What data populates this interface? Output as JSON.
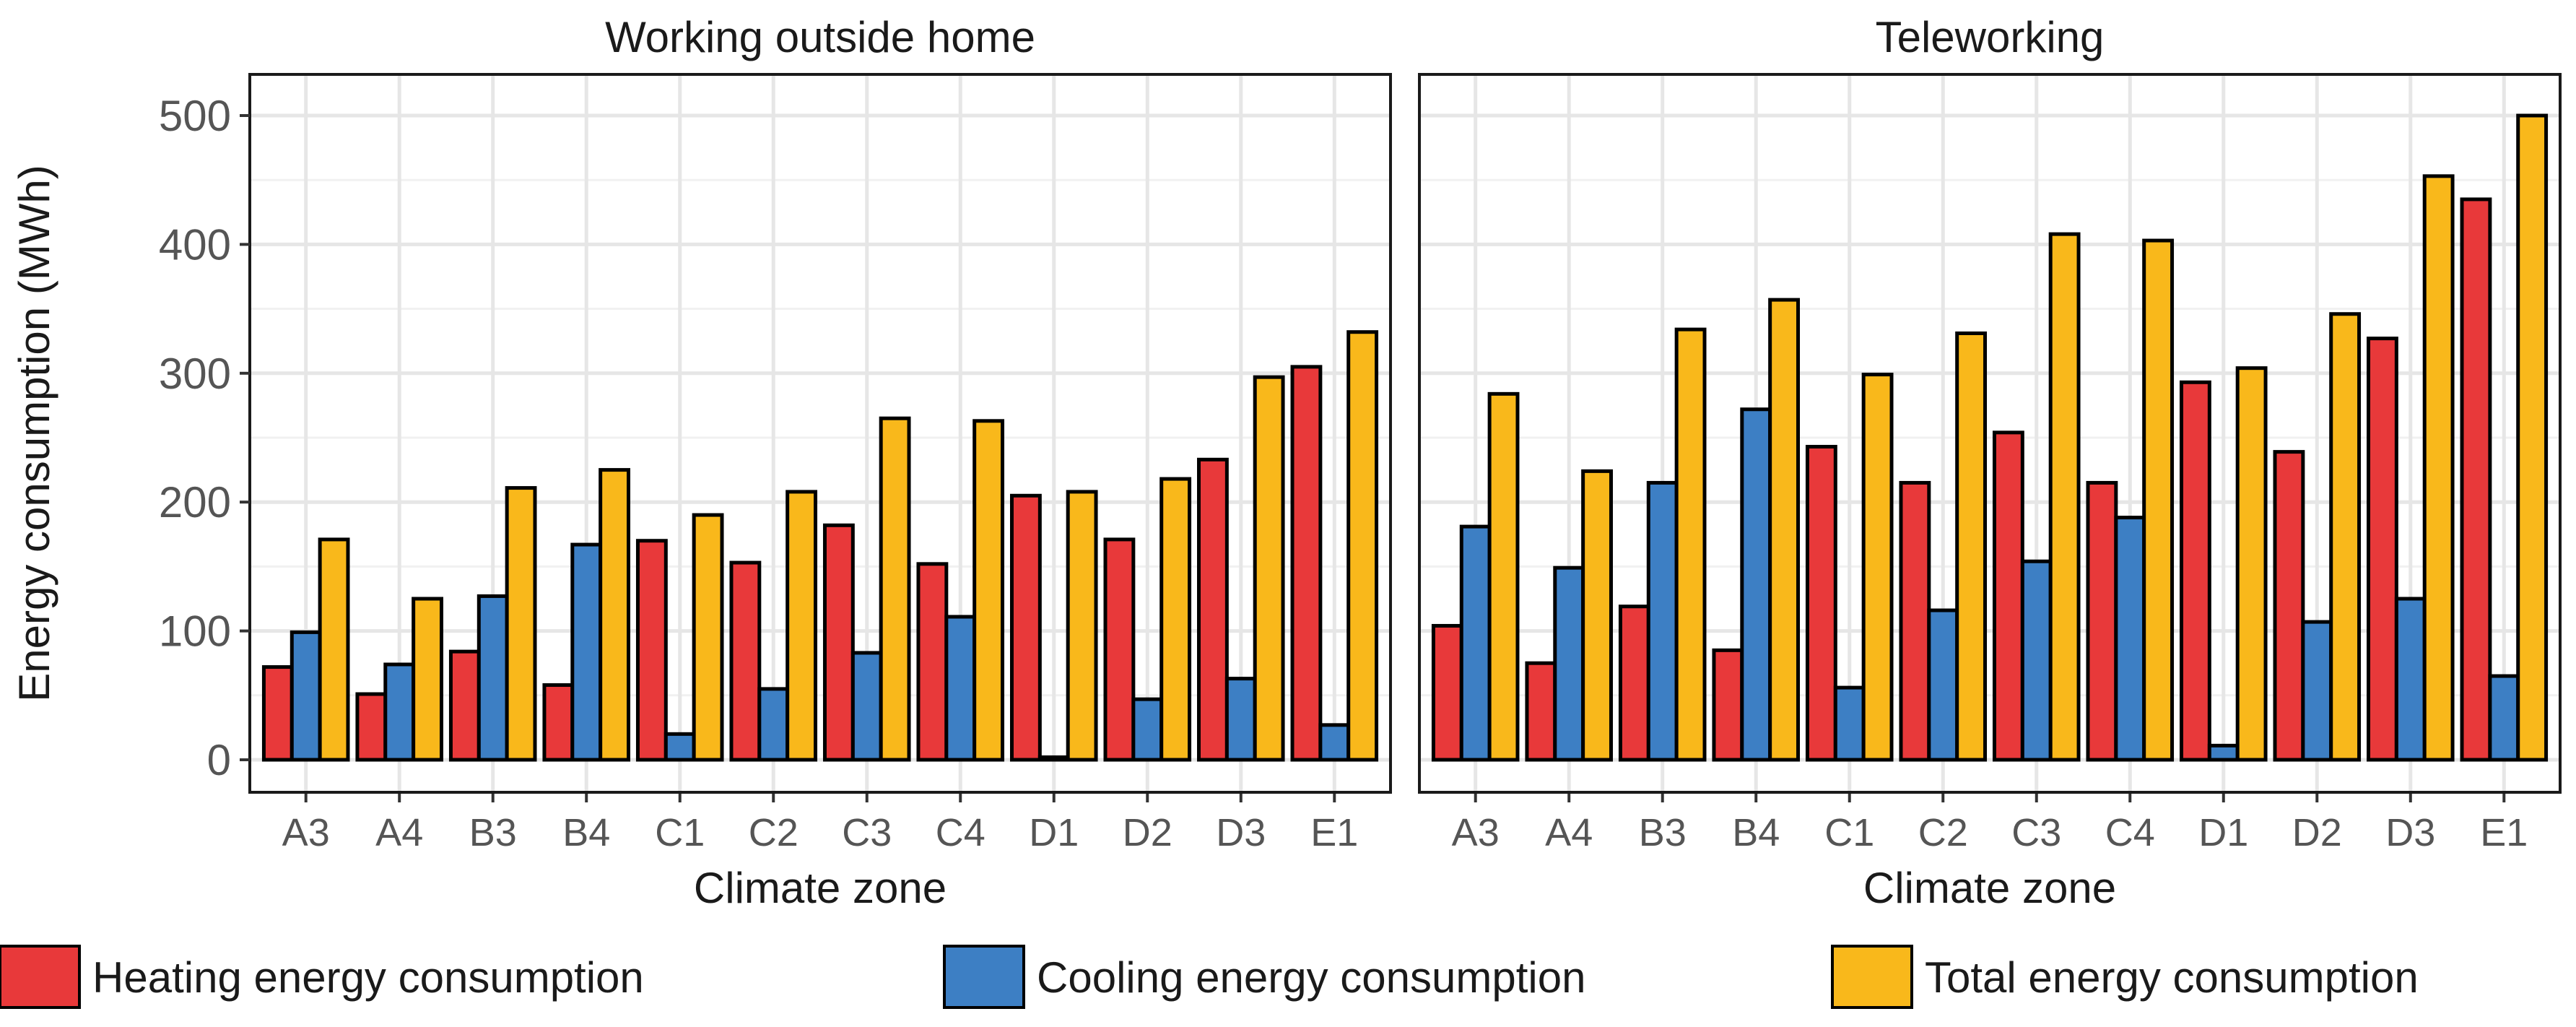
{
  "chart_data": {
    "type": "bar",
    "ylabel": "Energy consumption (MWh)",
    "xlabel": "Climate zone",
    "ylim": [
      0,
      500
    ],
    "yticks": [
      0,
      100,
      200,
      300,
      400,
      500
    ],
    "grid": true,
    "legend_position": "bottom",
    "categories": [
      "A3",
      "A4",
      "B3",
      "B4",
      "C1",
      "C2",
      "C3",
      "C4",
      "D1",
      "D2",
      "D3",
      "E1"
    ],
    "series_legend": [
      {
        "name": "Heating energy consumption",
        "color": "#e8393a"
      },
      {
        "name": "Cooling energy consumption",
        "color": "#3d7fc4"
      },
      {
        "name": "Total energy consumption",
        "color": "#f9b81b"
      }
    ],
    "panels": [
      {
        "title": "Working outside home",
        "series": [
          {
            "name": "Heating energy consumption",
            "values": [
              72,
              51,
              84,
              58,
              170,
              153,
              182,
              152,
              205,
              171,
              233,
              305
            ]
          },
          {
            "name": "Cooling energy consumption",
            "values": [
              99,
              74,
              127,
              167,
              20,
              55,
              83,
              111,
              2,
              47,
              63,
              27
            ]
          },
          {
            "name": "Total energy consumption",
            "values": [
              171,
              125,
              211,
              225,
              190,
              208,
              265,
              263,
              208,
              218,
              297,
              332
            ]
          }
        ]
      },
      {
        "title": "Teleworking",
        "series": [
          {
            "name": "Heating energy consumption",
            "values": [
              104,
              75,
              119,
              85,
              243,
              215,
              254,
              215,
              293,
              239,
              327,
              435
            ]
          },
          {
            "name": "Cooling energy consumption",
            "values": [
              181,
              149,
              215,
              272,
              56,
              116,
              154,
              188,
              11,
              107,
              125,
              65
            ]
          },
          {
            "name": "Total energy consumption",
            "values": [
              284,
              224,
              334,
              357,
              299,
              331,
              408,
              403,
              304,
              346,
              453,
              500
            ]
          }
        ]
      }
    ]
  }
}
